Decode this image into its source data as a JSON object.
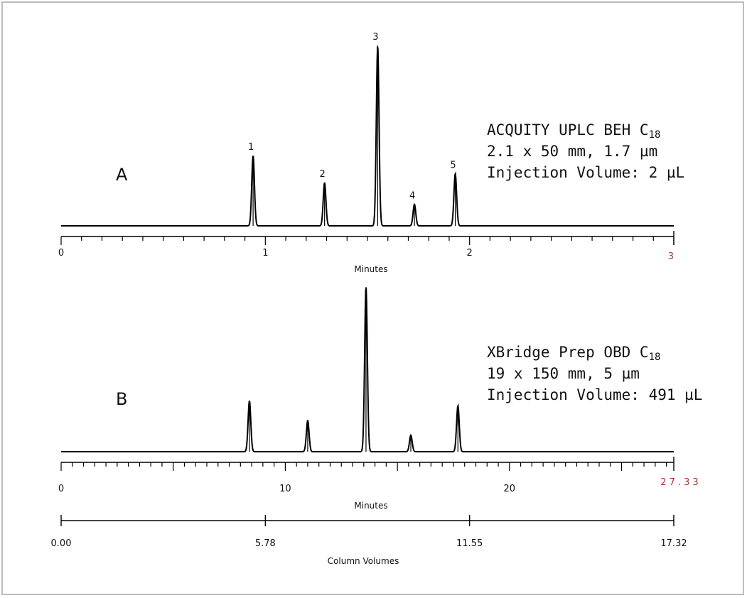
{
  "chart_data": [
    {
      "type": "line",
      "panel": "A",
      "info_lines": [
        "ACQUITY UPLC BEH C",
        "2.1 x 50 mm, 1.7 µm",
        "Injection Volume: 2 µL"
      ],
      "info_subscript": "18",
      "xlabel": "Minutes",
      "xlim": [
        0,
        3
      ],
      "xticks": [
        {
          "value": 0,
          "label": "0"
        },
        {
          "value": 1,
          "label": "1"
        },
        {
          "value": 2,
          "label": "2"
        }
      ],
      "xmax_label": "3",
      "grid": false,
      "peaks": [
        {
          "label": "1",
          "x": 0.94,
          "height": 0.39
        },
        {
          "label": "2",
          "x": 1.29,
          "height": 0.24
        },
        {
          "label": "3",
          "x": 1.55,
          "height": 1.0
        },
        {
          "label": "4",
          "x": 1.73,
          "height": 0.12
        },
        {
          "label": "5",
          "x": 1.93,
          "height": 0.29
        }
      ]
    },
    {
      "type": "line",
      "panel": "B",
      "info_lines": [
        "XBridge Prep OBD C",
        "19 x 150 mm, 5 µm",
        "Injection Volume: 491 µL"
      ],
      "info_subscript": "18",
      "xlabel": "Minutes",
      "xlim": [
        0,
        27.33
      ],
      "xticks": [
        {
          "value": 0,
          "label": "0"
        },
        {
          "value": 10,
          "label": "10"
        },
        {
          "value": 20,
          "label": "20"
        }
      ],
      "xmax_label": "27.33",
      "second_axis": {
        "xlabel": "Column Volumes",
        "xlim": [
          0,
          17.32
        ],
        "xticks": [
          "0.00",
          "5.78",
          "11.55",
          "17.32"
        ]
      },
      "grid": false,
      "peaks": [
        {
          "x": 8.4,
          "height": 0.31
        },
        {
          "x": 11.0,
          "height": 0.19
        },
        {
          "x": 13.6,
          "height": 1.0
        },
        {
          "x": 15.6,
          "height": 0.1
        },
        {
          "x": 17.7,
          "height": 0.28
        }
      ]
    }
  ],
  "colors": {
    "trace": "#000000",
    "end_label": "#b03030",
    "frame": "#bcbcbc"
  }
}
